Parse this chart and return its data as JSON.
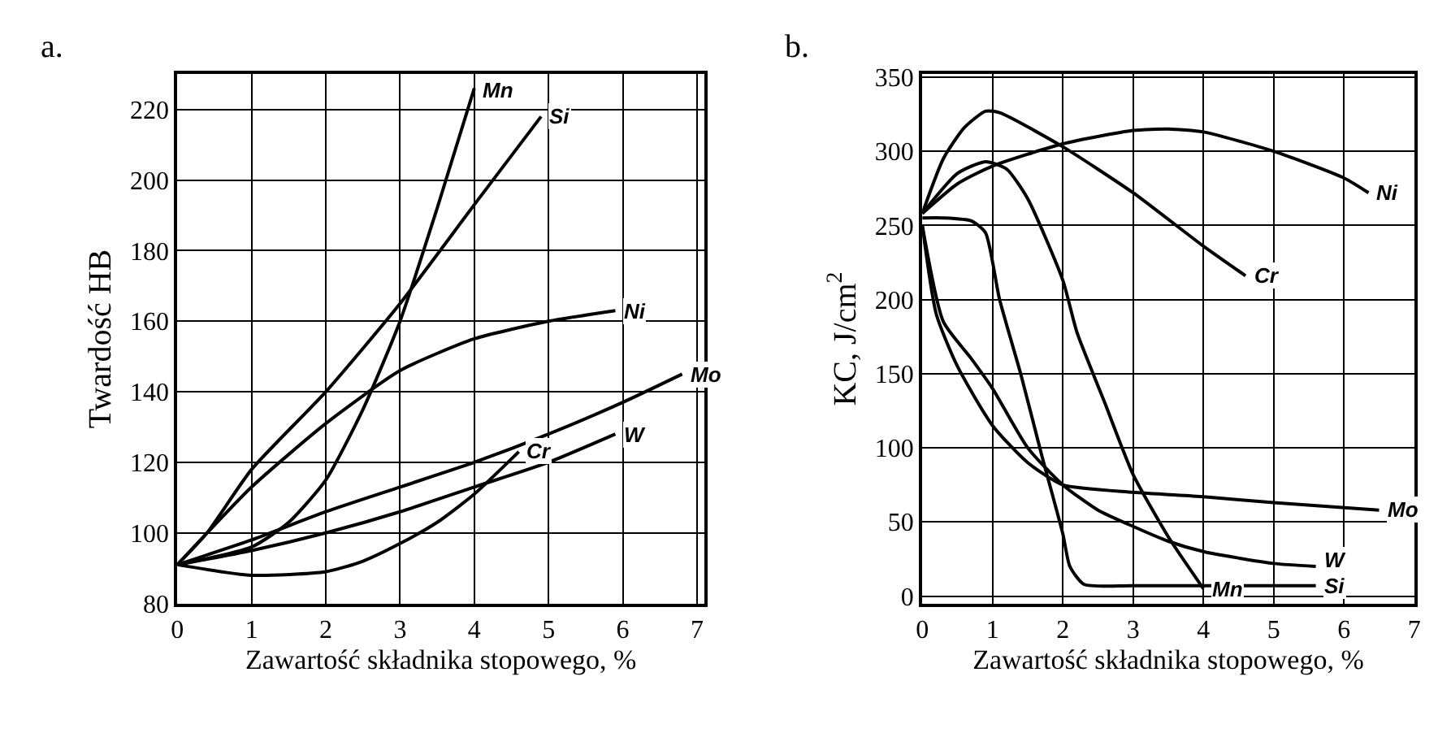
{
  "chart_data": [
    {
      "type": "line",
      "title": "a.",
      "xlabel": "Zawartość składnika stopowego, %",
      "ylabel": "Twardość HB",
      "xlim": [
        0,
        7.1
      ],
      "ylim": [
        80,
        230
      ],
      "xticks": [
        0,
        1,
        2,
        3,
        4,
        5,
        6,
        7
      ],
      "yticks": [
        80,
        100,
        120,
        140,
        160,
        180,
        200,
        220
      ],
      "grid": true,
      "line_style": "solid",
      "series": [
        {
          "name": "Mn",
          "color": "#000000",
          "x": [
            0,
            1,
            1.5,
            2,
            2.5,
            3,
            3.5,
            4
          ],
          "values": [
            91,
            96,
            103,
            115,
            135,
            160,
            192,
            226
          ]
        },
        {
          "name": "Si",
          "color": "#000000",
          "x": [
            0,
            0.4,
            1,
            2,
            3,
            4,
            4.9
          ],
          "values": [
            91,
            100,
            118,
            140,
            165,
            193,
            218
          ]
        },
        {
          "name": "Ni",
          "color": "#000000",
          "x": [
            0,
            1,
            2,
            3,
            4,
            5,
            5.9
          ],
          "values": [
            91,
            113,
            131,
            146,
            155,
            160,
            163
          ]
        },
        {
          "name": "Mo",
          "color": "#000000",
          "x": [
            0,
            1,
            2,
            3,
            4,
            5,
            6,
            6.8
          ],
          "values": [
            91,
            98,
            106,
            113,
            120,
            128,
            137,
            145
          ]
        },
        {
          "name": "W",
          "color": "#000000",
          "x": [
            0,
            1,
            2,
            3,
            4,
            5,
            5.9
          ],
          "values": [
            91,
            95,
            100,
            106,
            113,
            120,
            128
          ]
        },
        {
          "name": "Cr",
          "color": "#000000",
          "x": [
            0,
            1,
            2,
            2.5,
            3,
            3.5,
            4,
            4.6
          ],
          "values": [
            91,
            88,
            89,
            92,
            97,
            103,
            111,
            123
          ]
        }
      ]
    },
    {
      "type": "line",
      "title": "b.",
      "xlabel": "Zawartość składnika stopowego, %",
      "ylabel": "KC, J/cm$^{2}$",
      "xlim": [
        0,
        7
      ],
      "ylim": [
        -5,
        352
      ],
      "xticks": [
        0,
        1,
        2,
        3,
        4,
        5,
        6,
        7
      ],
      "yticks": [
        0,
        50,
        100,
        150,
        200,
        250,
        300,
        350
      ],
      "grid": true,
      "line_style": "solid",
      "series": [
        {
          "name": "Ni",
          "color": "#000000",
          "x": [
            0,
            0.5,
            1,
            2,
            3,
            3.5,
            4,
            5,
            6,
            6.35
          ],
          "values": [
            258,
            278,
            290,
            305,
            314,
            315,
            313,
            300,
            282,
            272
          ]
        },
        {
          "name": "Cr",
          "color": "#000000",
          "x": [
            0,
            0.3,
            0.6,
            0.9,
            1.1,
            2,
            3,
            4,
            4.6
          ],
          "values": [
            258,
            295,
            316,
            327,
            326,
            303,
            272,
            236,
            216
          ]
        },
        {
          "name": "Mn",
          "color": "#000000",
          "x": [
            0,
            0.5,
            0.9,
            1.2,
            1.5,
            2,
            2.2,
            2.6,
            3,
            3.5,
            4
          ],
          "values": [
            258,
            285,
            293,
            288,
            268,
            213,
            178,
            130,
            82,
            40,
            5
          ]
        },
        {
          "name": "Si",
          "color": "#000000",
          "x": [
            0,
            0.3,
            0.7,
            0.9,
            1.1,
            1.4,
            1.7,
            2,
            2.1,
            2.3,
            3,
            5.6
          ],
          "values": [
            255,
            255,
            253,
            245,
            200,
            150,
            95,
            42,
            20,
            8,
            7,
            7
          ]
        },
        {
          "name": "Mo",
          "color": "#000000",
          "x": [
            0,
            0.2,
            0.5,
            1,
            1.5,
            2,
            3,
            4,
            5,
            6.5
          ],
          "values": [
            250,
            190,
            155,
            115,
            90,
            75,
            70,
            67,
            63,
            58
          ]
        },
        {
          "name": "W",
          "color": "#000000",
          "x": [
            0,
            0.3,
            0.7,
            1,
            1.5,
            2,
            2.5,
            3,
            3.5,
            4,
            5,
            5.6
          ],
          "values": [
            250,
            185,
            160,
            140,
            100,
            75,
            58,
            47,
            37,
            30,
            22,
            20
          ]
        }
      ]
    }
  ]
}
